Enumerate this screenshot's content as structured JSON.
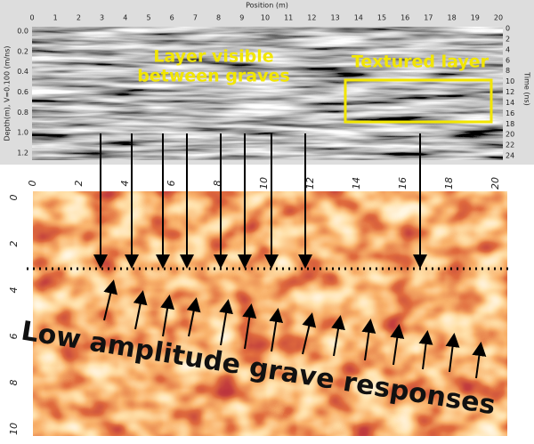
{
  "radargram": {
    "x_axis_label": "Position (m)",
    "x_ticks": [
      0,
      1,
      2,
      3,
      4,
      5,
      6,
      7,
      8,
      9,
      10,
      11,
      12,
      13,
      14,
      15,
      16,
      17,
      18,
      19,
      20
    ],
    "depth_axis_label": "Depth(m), V=0.100 (m/ns)",
    "depth_ticks": [
      "0.0",
      "0.2",
      "0.4",
      "0.6",
      "0.8",
      "1.0",
      "1.2"
    ],
    "time_axis_label": "Time (ns)",
    "time_ticks": [
      0,
      2,
      4,
      6,
      8,
      10,
      12,
      14,
      16,
      18,
      20,
      22,
      24
    ]
  },
  "depth_slice": {
    "x_ticks": [
      0,
      2,
      4,
      6,
      8,
      10,
      12,
      14,
      16,
      18,
      20
    ],
    "y_ticks": [
      0,
      2,
      4,
      6,
      8,
      10
    ]
  },
  "annotations": {
    "layer_visible": [
      "Layer visible",
      "between graves"
    ],
    "textured_layer": "Textured layer",
    "grave_responses": "Low amplitude grave responses"
  }
}
